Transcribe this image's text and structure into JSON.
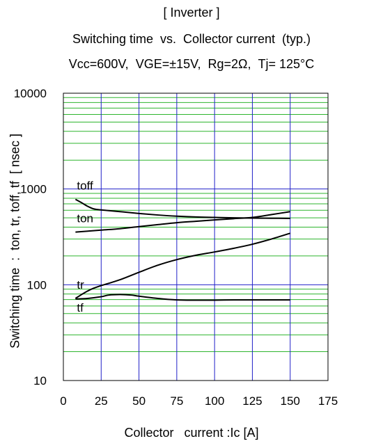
{
  "chart_data": {
    "type": "line",
    "title": "[ Inverter ]",
    "subtitle": "Switching time  vs.  Collector current  (typ.)",
    "conditions": "Vcc=600V,  VGE=±15V,  Rg=2Ω,  Tj= 125°C",
    "xlabel": "Collector   current :Ic [A]",
    "ylabel": "Switching time  :  ton, tr, toff, tf  [ nsec ]",
    "xlim": [
      0,
      175
    ],
    "ylim": [
      10,
      10000
    ],
    "yscale": "log",
    "x_ticks": [
      "0",
      "25",
      "50",
      "75",
      "100",
      "125",
      "150",
      "175"
    ],
    "y_ticks": [
      "10",
      "100",
      "1000",
      "10000"
    ],
    "grid": true,
    "series": [
      {
        "name": "toff",
        "color": "#000000",
        "x": [
          8,
          12,
          16,
          20,
          25,
          37.5,
          50,
          62.5,
          75,
          87.5,
          100,
          112.5,
          125,
          137.5,
          150
        ],
        "y": [
          780,
          720,
          660,
          620,
          605,
          580,
          555,
          535,
          520,
          510,
          505,
          500,
          497,
          495,
          493
        ]
      },
      {
        "name": "ton",
        "color": "#000000",
        "x": [
          8,
          25,
          37.5,
          50,
          62.5,
          75,
          87.5,
          100,
          112.5,
          125,
          137.5,
          150
        ],
        "y": [
          355,
          372,
          385,
          405,
          425,
          445,
          460,
          475,
          490,
          505,
          540,
          580
        ]
      },
      {
        "name": "tr",
        "color": "#000000",
        "x": [
          8,
          12,
          16,
          20,
          25,
          37.5,
          50,
          62.5,
          75,
          87.5,
          100,
          112.5,
          125,
          137.5,
          150
        ],
        "y": [
          72,
          79,
          86,
          92,
          98,
          113,
          135,
          160,
          183,
          203,
          220,
          240,
          265,
          300,
          345
        ]
      },
      {
        "name": "tf",
        "color": "#000000",
        "x": [
          8,
          16,
          25,
          30,
          37.5,
          45,
          50,
          62.5,
          75,
          87.5,
          100,
          112.5,
          125,
          137.5,
          150
        ],
        "y": [
          71,
          72,
          75,
          78,
          79,
          78,
          76,
          72,
          69.5,
          69,
          69,
          69.5,
          69.5,
          69.5,
          69.5
        ]
      }
    ]
  }
}
